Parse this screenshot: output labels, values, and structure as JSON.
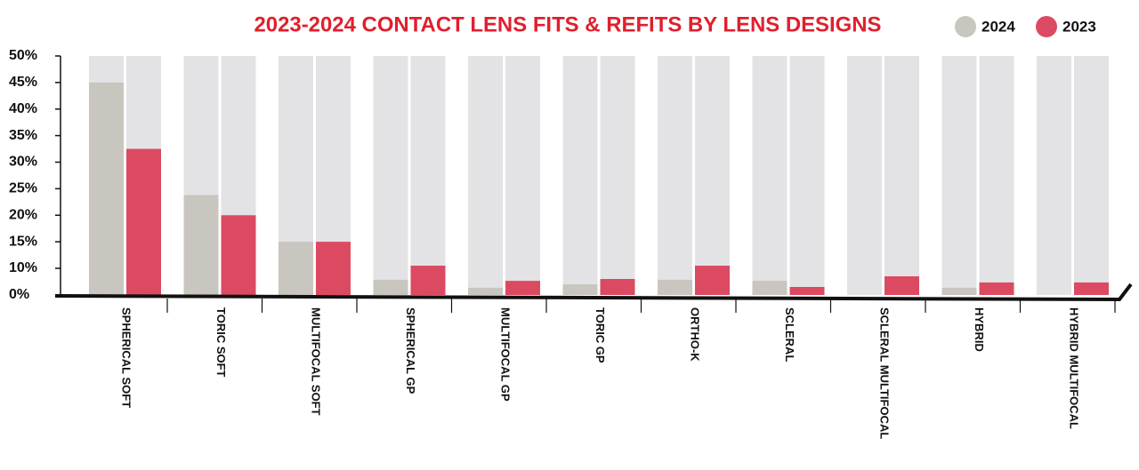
{
  "chart_data": {
    "type": "bar",
    "title": "2023-2024 CONTACT LENS FITS & REFITS BY LENS DESIGNS",
    "categories": [
      "SPHERICAL SOFT",
      "TORIC SOFT",
      "MULTIFOCAL SOFT",
      "SPHERICAL GP",
      "MULTIFOCAL GP",
      "TORIC GP",
      "ORTHO-K",
      "SCLERAL",
      "SCLERAL MULTIFOCAL",
      "HYBRID",
      "HYBRID MULTIFOCAL"
    ],
    "series": [
      {
        "name": "2024",
        "color": "#c9c5bf",
        "values": [
          45,
          23.8,
          15,
          5.7,
          2.7,
          4,
          5.7,
          5.3,
          0,
          2.7,
          0
        ]
      },
      {
        "name": "2023",
        "color": "#dc4a62",
        "values": [
          32.5,
          20,
          15,
          10.5,
          5.3,
          6,
          10.5,
          3,
          7,
          4.7,
          4.7
        ]
      }
    ],
    "ylim": [
      0,
      50
    ],
    "yticks": [
      {
        "value": 0,
        "label": "0%"
      },
      {
        "value": 10,
        "label": "10%"
      },
      {
        "value": 15,
        "label": "15%"
      },
      {
        "value": 20,
        "label": "20%"
      },
      {
        "value": 25,
        "label": "25%"
      },
      {
        "value": 30,
        "label": "30%"
      },
      {
        "value": 35,
        "label": "35%"
      },
      {
        "value": 40,
        "label": "40%"
      },
      {
        "value": 45,
        "label": "45%"
      },
      {
        "value": 50,
        "label": "50%"
      }
    ],
    "background_color": "#e3e3e5",
    "legend": "top-right"
  }
}
